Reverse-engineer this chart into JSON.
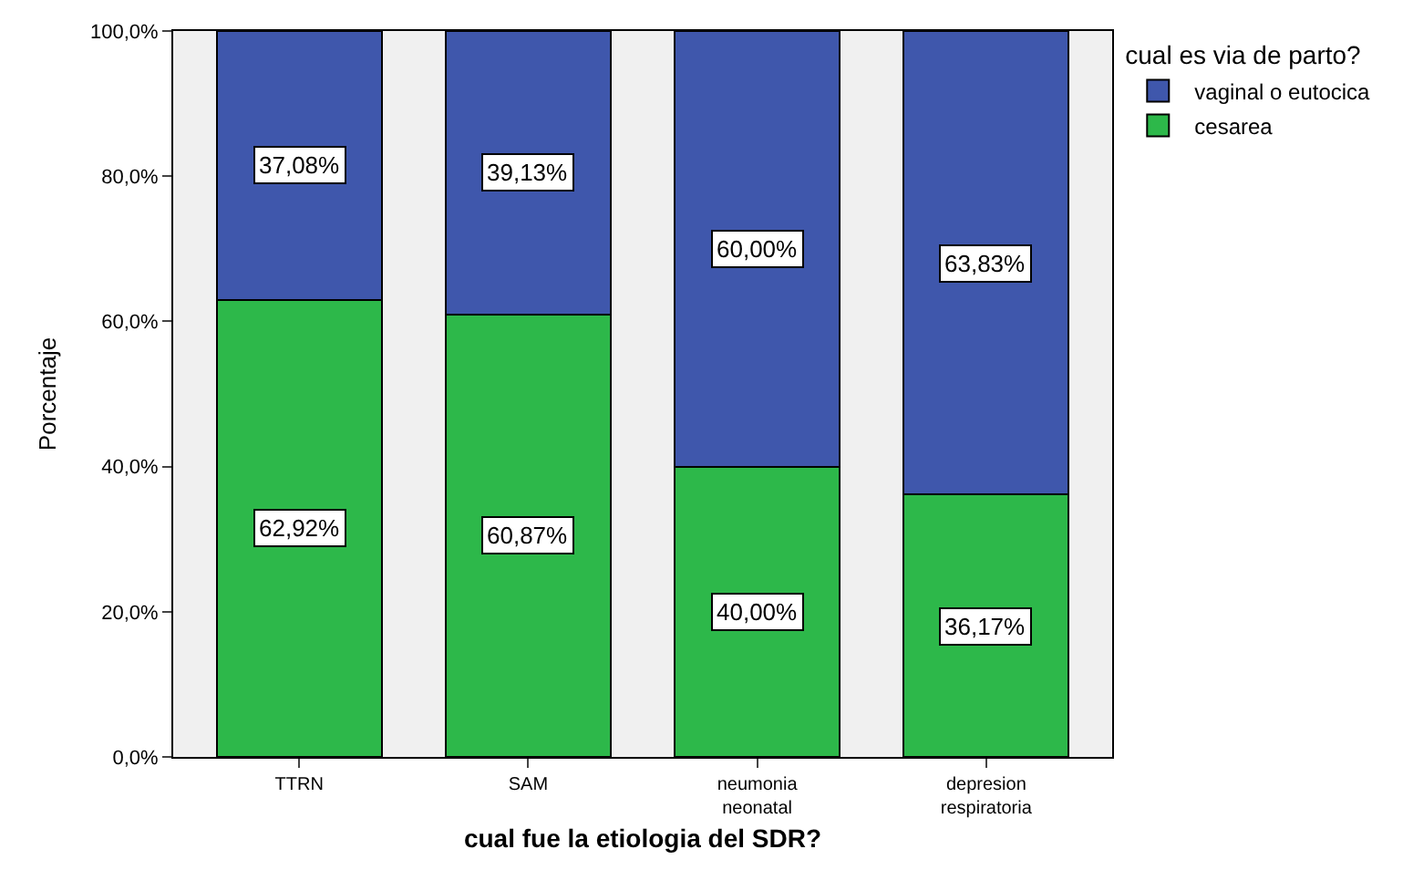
{
  "chart_data": {
    "type": "bar",
    "stacked": true,
    "xlabel": "cual fue la etiologia del SDR?",
    "ylabel": "Porcentaje",
    "legend_title": "cual es via de parto?",
    "legend": "top right",
    "categories": [
      "TTRN",
      "SAM",
      "neumonia neonatal",
      "depresion respiratoria"
    ],
    "series": [
      {
        "name": "cesarea",
        "color": "#2db84a",
        "values": [
          62.92,
          60.87,
          40.0,
          36.17
        ],
        "value_labels": [
          "62,92%",
          "60,87%",
          "40,00%",
          "36,17%"
        ]
      },
      {
        "name": "vaginal o eutocica",
        "color": "#3f57ac",
        "values": [
          37.08,
          39.13,
          60.0,
          63.83
        ],
        "value_labels": [
          "37,08%",
          "39,13%",
          "60,00%",
          "63,83%"
        ]
      }
    ],
    "ylim": [
      0,
      100
    ],
    "yticks": [
      {
        "value": 0,
        "label": "0,0%"
      },
      {
        "value": 20,
        "label": "20,0%"
      },
      {
        "value": 40,
        "label": "40,0%"
      },
      {
        "value": 60,
        "label": "60,0%"
      },
      {
        "value": 80,
        "label": "80,0%"
      },
      {
        "value": 100,
        "label": "100,0%"
      }
    ],
    "grid": false
  }
}
